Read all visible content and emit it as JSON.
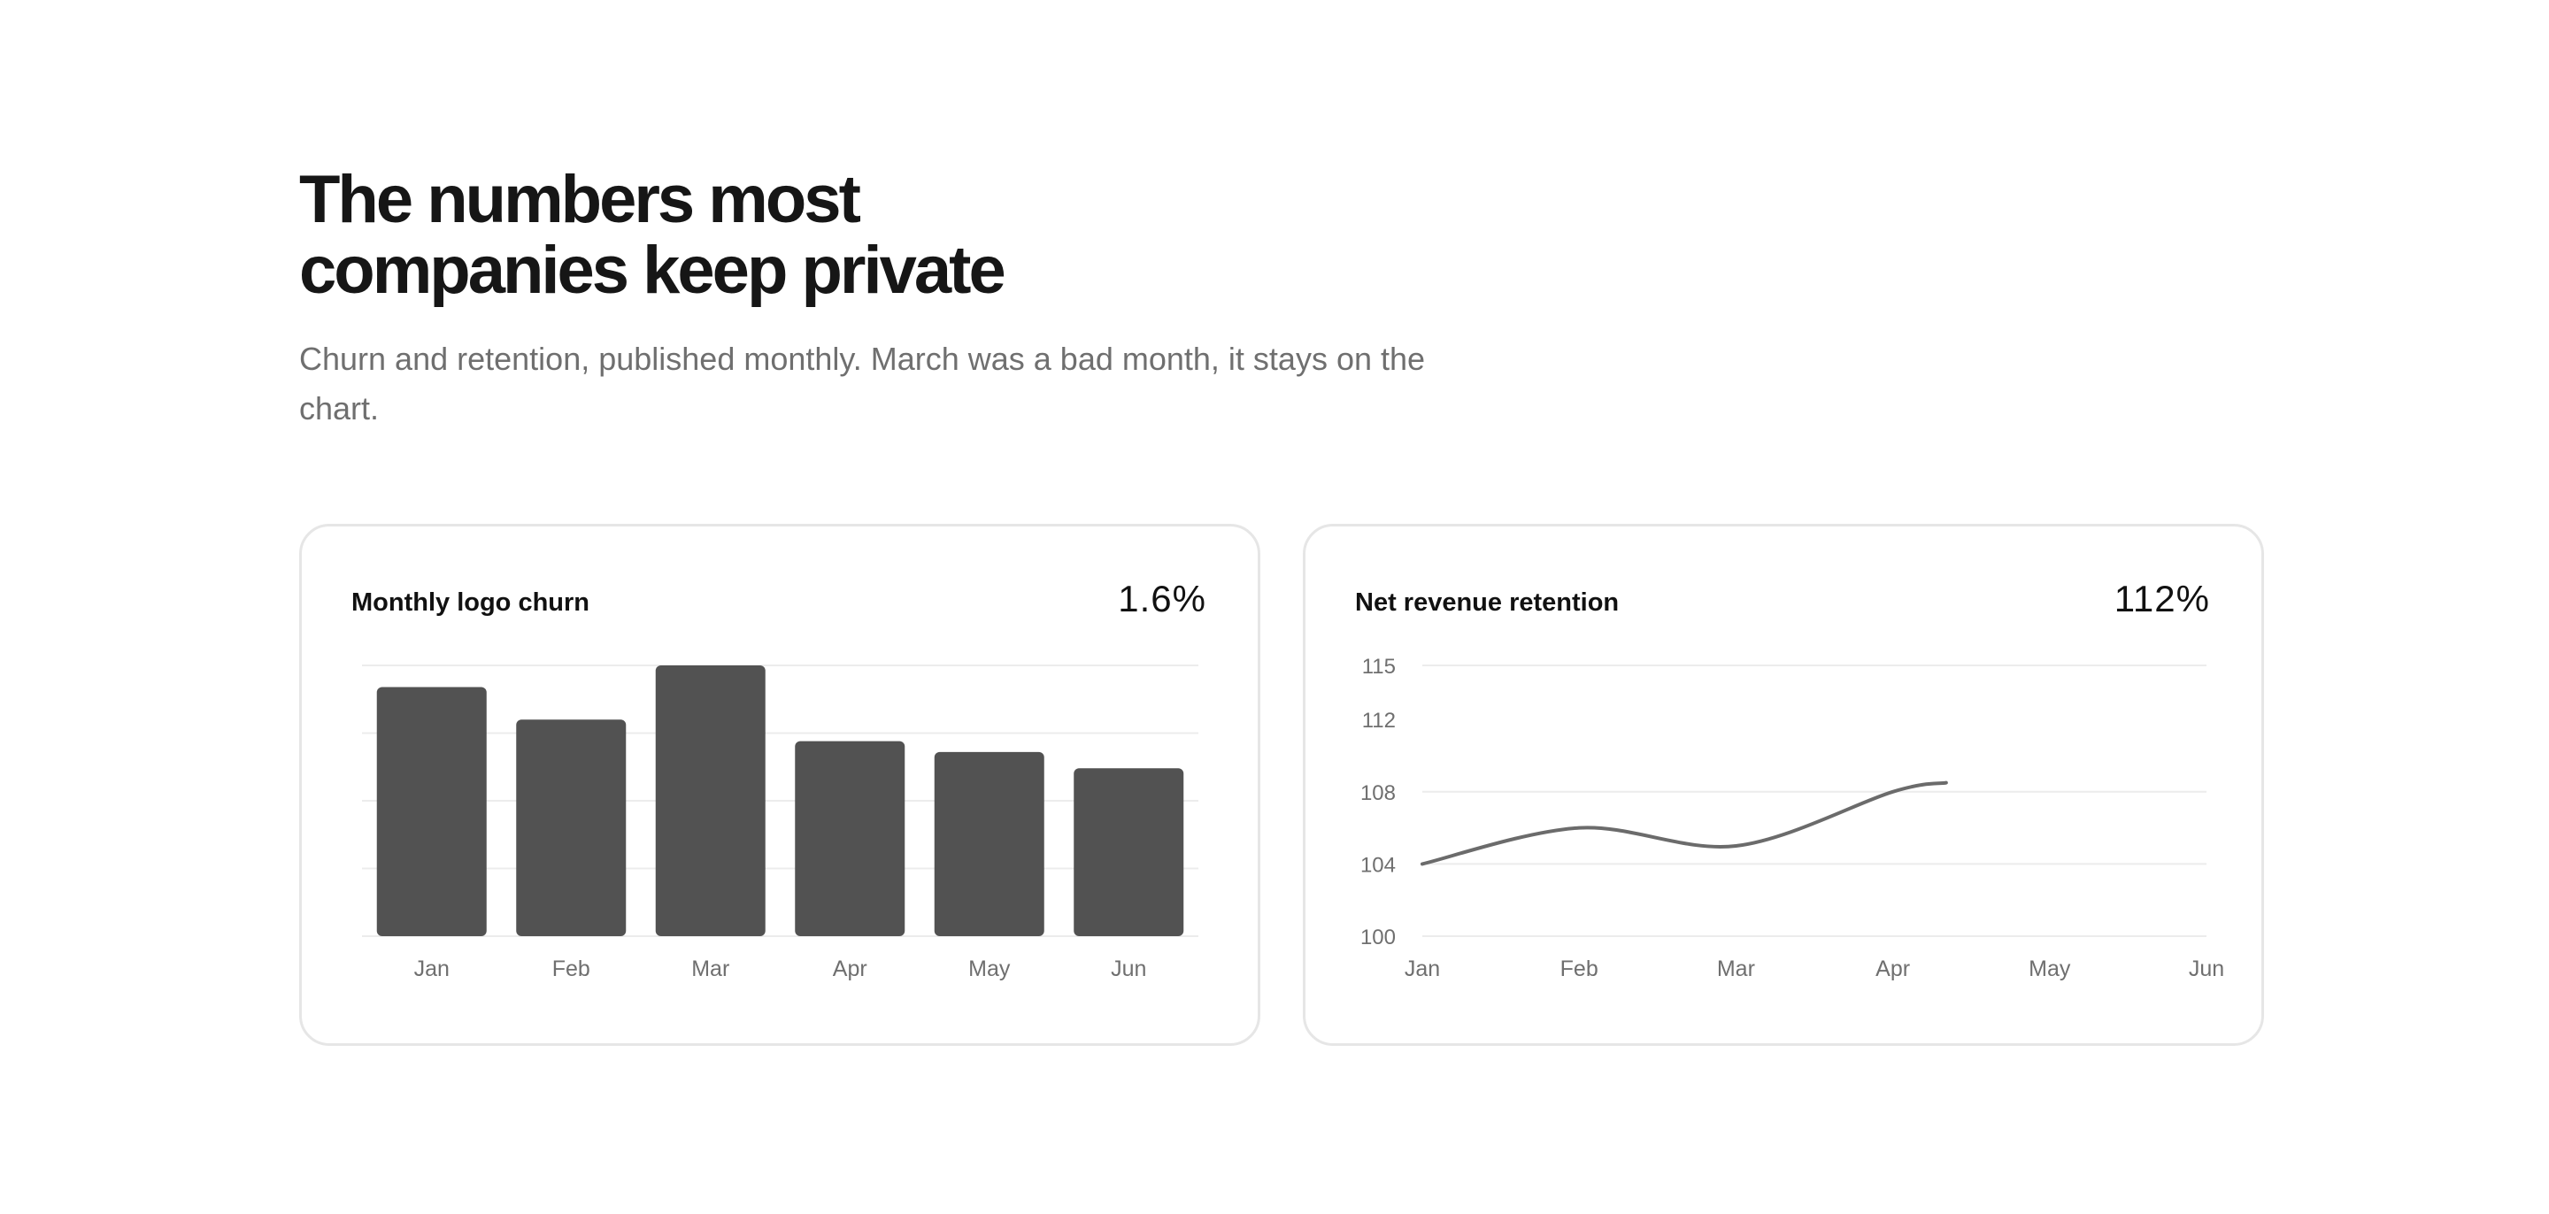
{
  "hero": {
    "title_line1": "The numbers most",
    "title_line2": "companies keep private",
    "subtitle": "Churn and retention, published monthly. March was a bad month, it stays on the chart."
  },
  "cards": [
    {
      "title": "Monthly logo churn",
      "value": "1.6%"
    },
    {
      "title": "Net revenue retention",
      "value": "112%"
    }
  ],
  "colors": {
    "bar": "#525252",
    "line": "#6b6b6b",
    "grid": "#ececec",
    "tick_text": "#6f6f6f"
  },
  "chart_data": [
    {
      "type": "bar",
      "title": "Monthly logo churn",
      "categories": [
        "Jan",
        "Feb",
        "Mar",
        "Apr",
        "May",
        "Jun"
      ],
      "values": [
        2.3,
        2.0,
        2.5,
        1.8,
        1.7,
        1.55
      ],
      "ylim": [
        0,
        2.5
      ],
      "grid": true,
      "xlabel": "",
      "ylabel": ""
    },
    {
      "type": "line",
      "title": "Net revenue retention",
      "categories": [
        "Jan",
        "Feb",
        "Mar",
        "Apr",
        "May",
        "Jun"
      ],
      "x": [
        "Jan",
        "Feb",
        "Mar",
        "Apr"
      ],
      "values": [
        104,
        106,
        105,
        108
      ],
      "end_value": 108.5,
      "yticks": [
        100,
        104,
        108,
        112,
        115
      ],
      "ylim": [
        100,
        115
      ],
      "grid": true,
      "xlabel": "",
      "ylabel": ""
    }
  ]
}
